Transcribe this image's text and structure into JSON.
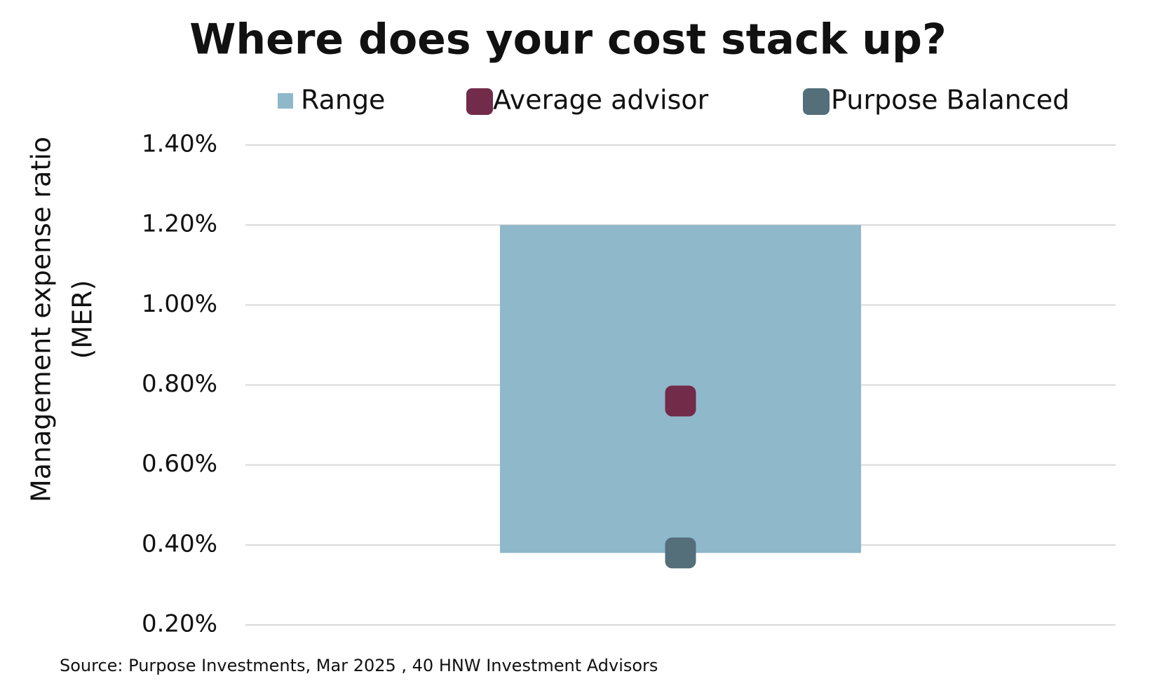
{
  "chart_data": {
    "type": "range",
    "title": "Where does your cost stack up?",
    "ylabel": [
      "Management expense ratio",
      "(MER)"
    ],
    "source": "Source: Purpose Investments, Mar 2025 , 40 HNW Investment Advisors",
    "categories": [
      null
    ],
    "series": [
      {
        "name": "Range",
        "color": "#8fb8ca",
        "low": [
          0.38
        ],
        "high": [
          1.2
        ]
      },
      {
        "name": "Average advisor",
        "color": "#722b48",
        "values": [
          0.76
        ]
      },
      {
        "name": "Purpose Balanced",
        "color": "#546e7a",
        "values": [
          0.38
        ]
      }
    ],
    "ylim": [
      0.2,
      1.4
    ],
    "yticks": [
      {
        "value": 0.2,
        "label": "0.20%"
      },
      {
        "value": 0.4,
        "label": "0.40%"
      },
      {
        "value": 0.6,
        "label": "0.60%"
      },
      {
        "value": 0.8,
        "label": "0.80%"
      },
      {
        "value": 1.0,
        "label": "1.00%"
      },
      {
        "value": 1.2,
        "label": "1.20%"
      },
      {
        "value": 1.4,
        "label": "1.40%"
      }
    ],
    "grid": true,
    "legend": "top"
  }
}
